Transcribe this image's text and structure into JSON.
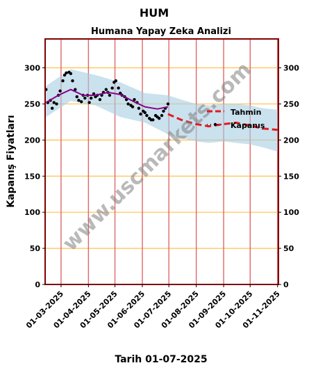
{
  "chart_data": {
    "type": "line",
    "title": "HUM",
    "subtitle": "Humana Yapay Zeka Analizi",
    "xlabel": "Tarih 01-07-2025",
    "ylabel": "Kapanış Fiyatları",
    "watermark": "www.uscmarkets.com",
    "ylim": [
      0,
      340
    ],
    "xlim": [
      "2025-02-11",
      "2025-11-02"
    ],
    "yticks": [
      0,
      50,
      100,
      150,
      200,
      250,
      300
    ],
    "xtick_labels": [
      "01-03-2025",
      "01-04-2025",
      "01-05-2025",
      "01-06-2025",
      "01-07-2025",
      "01-08-2025",
      "01-09-2025",
      "01-10-2025",
      "01-11-2025"
    ],
    "xtick_dates": [
      "2025-03-01",
      "2025-04-01",
      "2025-05-01",
      "2025-06-01",
      "2025-07-01",
      "2025-08-01",
      "2025-09-01",
      "2025-10-01",
      "2025-11-01"
    ],
    "grid": {
      "horizontal_color": "#ffc04d",
      "vertical_color": "#e06666"
    },
    "legend": {
      "position": "right",
      "entries": [
        "Tahmin",
        "Kapanış"
      ]
    },
    "series": [
      {
        "name": "Kapanış",
        "style": "points",
        "color": "#000000",
        "x": [
          "2025-02-12",
          "2025-02-14",
          "2025-02-17",
          "2025-02-19",
          "2025-02-21",
          "2025-02-24",
          "2025-02-26",
          "2025-02-28",
          "2025-03-03",
          "2025-03-05",
          "2025-03-07",
          "2025-03-10",
          "2025-03-12",
          "2025-03-14",
          "2025-03-17",
          "2025-03-19",
          "2025-03-21",
          "2025-03-24",
          "2025-03-26",
          "2025-03-28",
          "2025-03-31",
          "2025-04-02",
          "2025-04-04",
          "2025-04-07",
          "2025-04-09",
          "2025-04-11",
          "2025-04-14",
          "2025-04-16",
          "2025-04-18",
          "2025-04-21",
          "2025-04-23",
          "2025-04-25",
          "2025-04-28",
          "2025-04-30",
          "2025-05-02",
          "2025-05-05",
          "2025-05-07",
          "2025-05-09",
          "2025-05-12",
          "2025-05-14",
          "2025-05-16",
          "2025-05-19",
          "2025-05-21",
          "2025-05-23",
          "2025-05-26",
          "2025-05-28",
          "2025-05-30",
          "2025-06-02",
          "2025-06-04",
          "2025-06-06",
          "2025-06-09",
          "2025-06-11",
          "2025-06-13",
          "2025-06-16",
          "2025-06-18",
          "2025-06-20",
          "2025-06-23",
          "2025-06-25",
          "2025-06-27",
          "2025-06-30"
        ],
        "values": [
          270,
          252,
          255,
          244,
          252,
          250,
          262,
          268,
          282,
          290,
          293,
          294,
          292,
          282,
          270,
          260,
          255,
          253,
          262,
          258,
          262,
          252,
          258,
          264,
          260,
          262,
          256,
          262,
          266,
          270,
          266,
          262,
          272,
          280,
          282,
          272,
          265,
          262,
          260,
          256,
          250,
          248,
          246,
          256,
          252,
          244,
          236,
          240,
          238,
          234,
          230,
          228,
          228,
          234,
          232,
          230,
          234,
          240,
          244,
          250
        ]
      },
      {
        "name": "",
        "style": "line",
        "color": "#8b008b",
        "x": [
          "2025-02-12",
          "2025-02-26",
          "2025-03-12",
          "2025-03-26",
          "2025-04-09",
          "2025-04-23",
          "2025-05-07",
          "2025-05-21",
          "2025-06-04",
          "2025-06-18",
          "2025-06-30"
        ],
        "values": [
          252,
          262,
          270,
          262,
          262,
          266,
          263,
          254,
          246,
          243,
          246
        ]
      },
      {
        "name": "Tahmin",
        "style": "dashed",
        "color": "#e31a1c",
        "x": [
          "2025-06-30",
          "2025-07-15",
          "2025-08-01",
          "2025-08-15",
          "2025-09-01",
          "2025-09-15",
          "2025-10-01",
          "2025-10-15",
          "2025-11-01"
        ],
        "values": [
          236,
          228,
          222,
          219,
          222,
          224,
          220,
          216,
          214
        ]
      }
    ],
    "band": {
      "color": "#a6cde3",
      "x": [
        "2025-02-12",
        "2025-03-12",
        "2025-04-09",
        "2025-05-07",
        "2025-06-04",
        "2025-06-30",
        "2025-07-15",
        "2025-08-01",
        "2025-08-15",
        "2025-09-01",
        "2025-09-15",
        "2025-10-01",
        "2025-10-15",
        "2025-11-01"
      ],
      "upper": [
        275,
        298,
        290,
        280,
        265,
        262,
        256,
        250,
        248,
        250,
        250,
        248,
        244,
        242
      ],
      "lower": [
        232,
        254,
        248,
        232,
        224,
        208,
        203,
        198,
        196,
        198,
        196,
        194,
        190,
        184
      ]
    }
  }
}
